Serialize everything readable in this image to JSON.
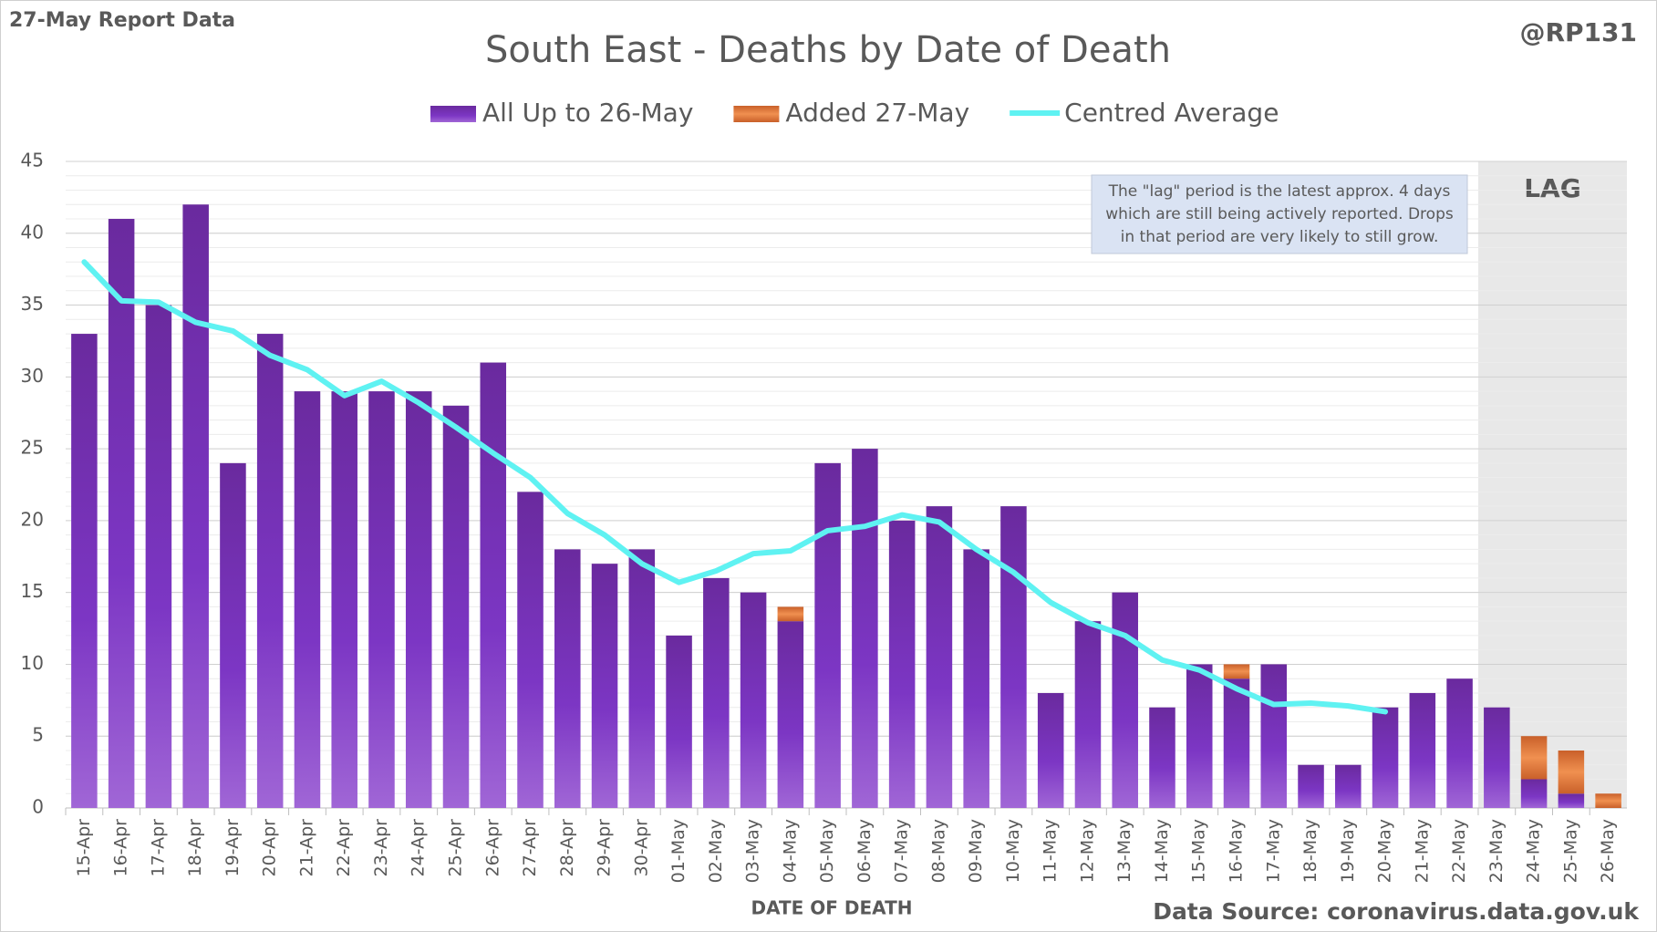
{
  "chart_data": {
    "type": "bar",
    "title": "South East - Deaths by Date of Death",
    "report_label": "27-May Report Data",
    "handle": "@RP131",
    "source": "Data Source: coronavirus.data.gov.uk",
    "x_label": "DATE OF DEATH",
    "categories": [
      "15-Apr",
      "16-Apr",
      "17-Apr",
      "18-Apr",
      "19-Apr",
      "20-Apr",
      "21-Apr",
      "22-Apr",
      "23-Apr",
      "24-Apr",
      "25-Apr",
      "26-Apr",
      "27-Apr",
      "28-Apr",
      "29-Apr",
      "30-Apr",
      "01-May",
      "02-May",
      "03-May",
      "04-May",
      "05-May",
      "06-May",
      "07-May",
      "08-May",
      "09-May",
      "10-May",
      "11-May",
      "12-May",
      "13-May",
      "14-May",
      "15-May",
      "16-May",
      "17-May",
      "18-May",
      "19-May",
      "20-May",
      "21-May",
      "22-May",
      "23-May",
      "24-May",
      "25-May",
      "26-May"
    ],
    "series": [
      {
        "name": "All Up to 26-May",
        "color": "#7a3bb5",
        "kind": "bar",
        "values": [
          33,
          41,
          35,
          42,
          24,
          33,
          29,
          29,
          29,
          29,
          28,
          31,
          22,
          18,
          17,
          18,
          12,
          16,
          15,
          13,
          24,
          25,
          20,
          21,
          18,
          21,
          8,
          13,
          15,
          7,
          10,
          9,
          10,
          3,
          3,
          7,
          8,
          9,
          7,
          2,
          1,
          0
        ]
      },
      {
        "name": "Added 27-May",
        "color": "#e07b39",
        "kind": "bar",
        "values": [
          0,
          0,
          0,
          0,
          0,
          0,
          0,
          0,
          0,
          0,
          0,
          0,
          0,
          0,
          0,
          0,
          0,
          0,
          0,
          1,
          0,
          0,
          0,
          0,
          0,
          0,
          0,
          0,
          0,
          0,
          0,
          1,
          0,
          0,
          0,
          0,
          0,
          0,
          0,
          3,
          3,
          1
        ]
      },
      {
        "name": "Centred Average",
        "color": "#5ff2f2",
        "kind": "line",
        "values": [
          38,
          35.3,
          35.2,
          33.8,
          33.2,
          31.5,
          30.5,
          28.7,
          29.7,
          28.2,
          26.5,
          24.7,
          23,
          20.5,
          19,
          17,
          15.7,
          16.5,
          17.7,
          17.9,
          19.3,
          19.6,
          20.4,
          19.9,
          18,
          16.4,
          14.3,
          12.9,
          12,
          10.3,
          9.6,
          8.3,
          7.2,
          7.3,
          7.1,
          6.7,
          null,
          null,
          null,
          null,
          null,
          null
        ]
      }
    ],
    "ylim": [
      0,
      45
    ],
    "yticks": [
      0,
      5,
      10,
      15,
      20,
      25,
      30,
      35,
      40,
      45
    ],
    "grid": true,
    "lag": {
      "label": "LAG",
      "from": "23-May"
    },
    "annotation": [
      "The \"lag\" period is the latest approx. 4 days",
      "which are still being actively reported. Drops",
      "in that period are very likely to still grow."
    ]
  }
}
